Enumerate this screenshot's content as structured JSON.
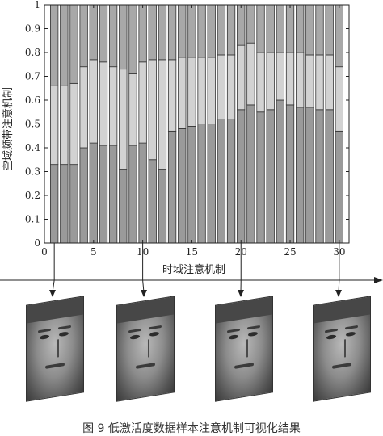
{
  "chart_data": {
    "type": "bar",
    "stacked": true,
    "x": [
      1,
      2,
      3,
      4,
      5,
      6,
      7,
      8,
      9,
      10,
      11,
      12,
      13,
      14,
      15,
      16,
      17,
      18,
      19,
      20,
      21,
      22,
      23,
      24,
      25,
      26,
      27,
      28,
      29,
      30
    ],
    "bottom": [
      0.33,
      0.33,
      0.33,
      0.4,
      0.42,
      0.41,
      0.41,
      0.31,
      0.41,
      0.42,
      0.35,
      0.31,
      0.47,
      0.48,
      0.49,
      0.5,
      0.5,
      0.52,
      0.52,
      0.56,
      0.58,
      0.55,
      0.56,
      0.6,
      0.58,
      0.57,
      0.57,
      0.56,
      0.56,
      0.47
    ],
    "middle_top": [
      0.66,
      0.66,
      0.67,
      0.74,
      0.77,
      0.76,
      0.74,
      0.73,
      0.71,
      0.76,
      0.77,
      0.77,
      0.77,
      0.78,
      0.78,
      0.78,
      0.78,
      0.79,
      0.79,
      0.83,
      0.84,
      0.8,
      0.8,
      0.8,
      0.8,
      0.8,
      0.79,
      0.79,
      0.79,
      0.74
    ],
    "xlim": [
      0,
      31
    ],
    "ylim": [
      0,
      1
    ],
    "xticks": [
      0,
      5,
      10,
      15,
      20,
      25,
      30
    ],
    "yticks": [
      "0",
      "0.1",
      "0.2",
      "0.3",
      "0.4",
      "0.5",
      "0.6",
      "0.7",
      "0.8",
      "0.9",
      "1"
    ],
    "xlabel": "时域注意机制",
    "ylabel": "空域频带注意机制",
    "face_markers": [
      1,
      10,
      20,
      30
    ],
    "colors": {
      "bottom": "#9a9a9a",
      "middle": "#d2d2d2",
      "top": "#a8a8a8",
      "edge": "#333333"
    }
  },
  "caption": "图 9   低激活度数据样本注意机制可视化结果"
}
